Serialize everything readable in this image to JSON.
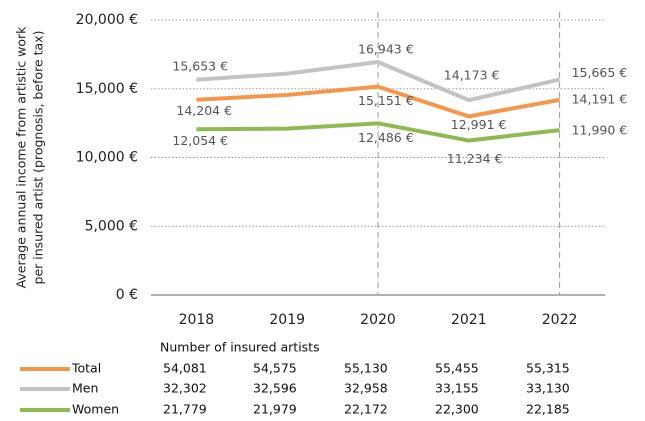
{
  "chart_data": {
    "type": "line",
    "ylabel": [
      "Average annual income from artistic work",
      "per insured artist (prognosis, before tax)"
    ],
    "categories": [
      "2018",
      "2019",
      "2020",
      "2021",
      "2022"
    ],
    "series": [
      {
        "name": "Total",
        "color": "#f5964b",
        "values": [
          14204,
          14550,
          15151,
          12991,
          14191
        ],
        "value_labels": [
          "14,204 €",
          null,
          "15,151 €",
          "12,991 €",
          "14,191 €"
        ]
      },
      {
        "name": "Men",
        "color": "#c3c3c3",
        "values": [
          15653,
          16100,
          16943,
          14173,
          15665
        ],
        "value_labels": [
          "15,653 €",
          null,
          "16,943 €",
          "14,173 €",
          "15,665 €"
        ]
      },
      {
        "name": "Women",
        "color": "#8fba52",
        "values": [
          12054,
          12100,
          12486,
          11234,
          11990
        ],
        "value_labels": [
          "12,054 €",
          null,
          "12,486 €",
          "11,234 €",
          "11,990 €"
        ]
      }
    ],
    "ylim": [
      0,
      20000
    ],
    "yticks": [
      {
        "value": 0,
        "label": "0 €"
      },
      {
        "value": 5000,
        "label": "5,000 €"
      },
      {
        "value": 10000,
        "label": "10,000 €"
      },
      {
        "value": 15000,
        "label": "15,000 €"
      },
      {
        "value": 20000,
        "label": "20,000 €"
      }
    ],
    "grid": true,
    "dashed_categories": [
      2,
      4
    ],
    "table": {
      "title": "Number of insured artists",
      "rows": [
        [
          "54,081",
          "54,575",
          "55,130",
          "55,455",
          "55,315"
        ],
        [
          "32,302",
          "32,596",
          "32,958",
          "33,155",
          "33,130"
        ],
        [
          "21,779",
          "21,979",
          "22,172",
          "22,300",
          "22,185"
        ]
      ]
    }
  }
}
